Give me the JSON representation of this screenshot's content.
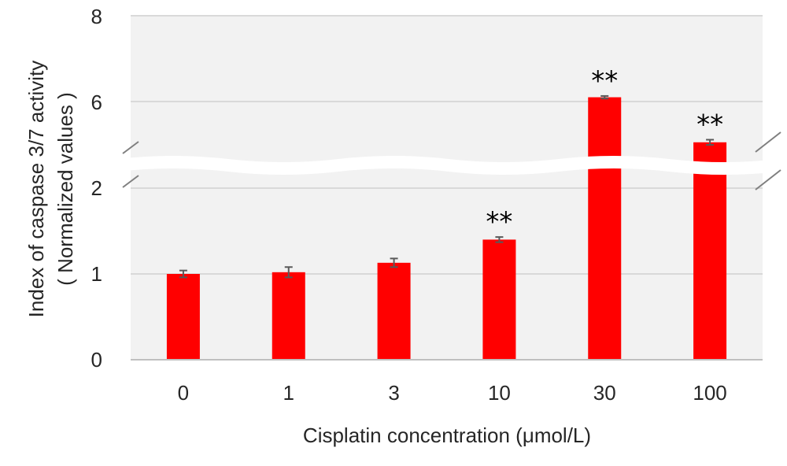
{
  "chart_data": {
    "type": "bar",
    "categories": [
      "0",
      "1",
      "3",
      "10",
      "30",
      "100"
    ],
    "values": [
      1.0,
      1.02,
      1.13,
      1.4,
      6.1,
      5.05
    ],
    "errors": [
      0.04,
      0.06,
      0.05,
      0.03,
      0.03,
      0.06
    ],
    "significance": [
      "",
      "",
      "",
      "**",
      "**",
      "**"
    ],
    "xlabel": "Cisplatin concentration (μmol/L)",
    "ylabel_line1": "Index of caspase 3/7 activity",
    "ylabel_line2": "( Normalized values )",
    "yticks": [
      "0",
      "1",
      "2",
      "6",
      "8"
    ],
    "ylim": [
      0,
      8
    ],
    "axis_break": {
      "lower": [
        0,
        2
      ],
      "upper": [
        4.5,
        8
      ]
    },
    "grid": true,
    "legend": "none",
    "colors": {
      "bar": "#ff0000",
      "plot_background": "#f2f2f2",
      "gridline": "#d9d9d9",
      "error_bar": "#595959"
    }
  }
}
